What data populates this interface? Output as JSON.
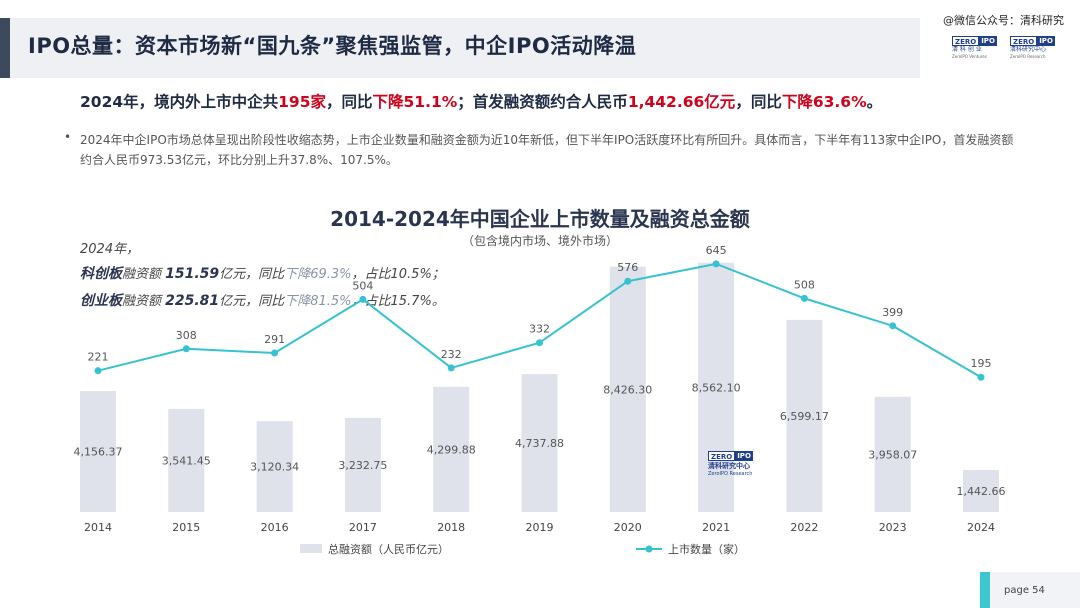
{
  "header": {
    "title": "IPO总量：资本市场新“国九条”聚焦强监管，中企IPO活动降温",
    "watermark": "@微信公众号：清科研究"
  },
  "logos": {
    "left": {
      "zero": "ZERO",
      "ipo": "IPO",
      "sub": "清 科 创 业",
      "sub2": "ZeroIPO Ventures"
    },
    "right": {
      "zero": "ZERO",
      "ipo": "IPO",
      "sub": "清科研究中心",
      "sub2": "ZeroIPO Research"
    },
    "chart_watermark": {
      "zero": "ZERO",
      "ipo": "IPO",
      "sub": "清科研究中心",
      "sub2": "ZeroIPO Research"
    }
  },
  "summary": {
    "p1": "2024年，境内外上市中企共",
    "count": "195家",
    "p2": "，同比",
    "count_change": "下降51.1%",
    "p3": "；首发融资额约合人民币",
    "amount": "1,442.66亿元",
    "p4": "，同比",
    "amount_change": "下降63.6%",
    "p5": "。"
  },
  "bullet": {
    "dot": "•",
    "text": "2024年中企IPO市场总体呈现出阶段性收缩态势，上市企业数量和融资金额为近10年新低，但下半年IPO活跃度环比有所回升。具体而言，下半年有113家中企IPO，首发融资额约合人民币973.53亿元，环比分别上升37.8%、107.5%。"
  },
  "annotations": {
    "year": "2024年，",
    "line1": {
      "board": "科创板",
      "label": "融资额 ",
      "amount": "151.59",
      "unit": "亿元，同比",
      "change": "下降69.3%",
      "share": "，占比10.5%；"
    },
    "line2": {
      "board": "创业板",
      "label": "融资额 ",
      "amount": "225.81",
      "unit": "亿元，同比",
      "change": "下降81.5%",
      "share": "，占比15.7%。"
    }
  },
  "footer": {
    "page": "page  54"
  },
  "colors": {
    "bar": "#dfe2ea",
    "line": "#36c2d0",
    "accent_red": "#d0021b",
    "title": "#1f2a44"
  },
  "chart_data": {
    "type": "bar+line",
    "title": "2014-2024年中国企业上市数量及融资总金额",
    "subtitle": "（包含境内市场、境外市场）",
    "categories": [
      "2014",
      "2015",
      "2016",
      "2017",
      "2018",
      "2019",
      "2020",
      "2021",
      "2022",
      "2023",
      "2024"
    ],
    "series": [
      {
        "name": "总融资额（人民币亿元）",
        "kind": "bar",
        "values": [
          4156.37,
          3541.45,
          3120.34,
          3232.75,
          4299.88,
          4737.88,
          8426.3,
          8562.1,
          6599.17,
          3958.07,
          1442.66
        ],
        "labels": [
          "4,156.37",
          "3,541.45",
          "3,120.34",
          "3,232.75",
          "4,299.88",
          "4,737.88",
          "8,426.30",
          "8,562.10",
          "6,599.17",
          "3,958.07",
          "1,442.66"
        ]
      },
      {
        "name": "上市数量（家）",
        "kind": "line",
        "values": [
          221,
          308,
          291,
          504,
          232,
          332,
          576,
          645,
          508,
          399,
          195
        ],
        "labels": [
          "221",
          "308",
          "291",
          "504",
          "232",
          "332",
          "576",
          "645",
          "508",
          "399",
          "195"
        ]
      }
    ],
    "bar_ylim": [
      0,
      9000
    ],
    "line_ylim": [
      -340,
      700
    ],
    "legend": "bottom"
  }
}
